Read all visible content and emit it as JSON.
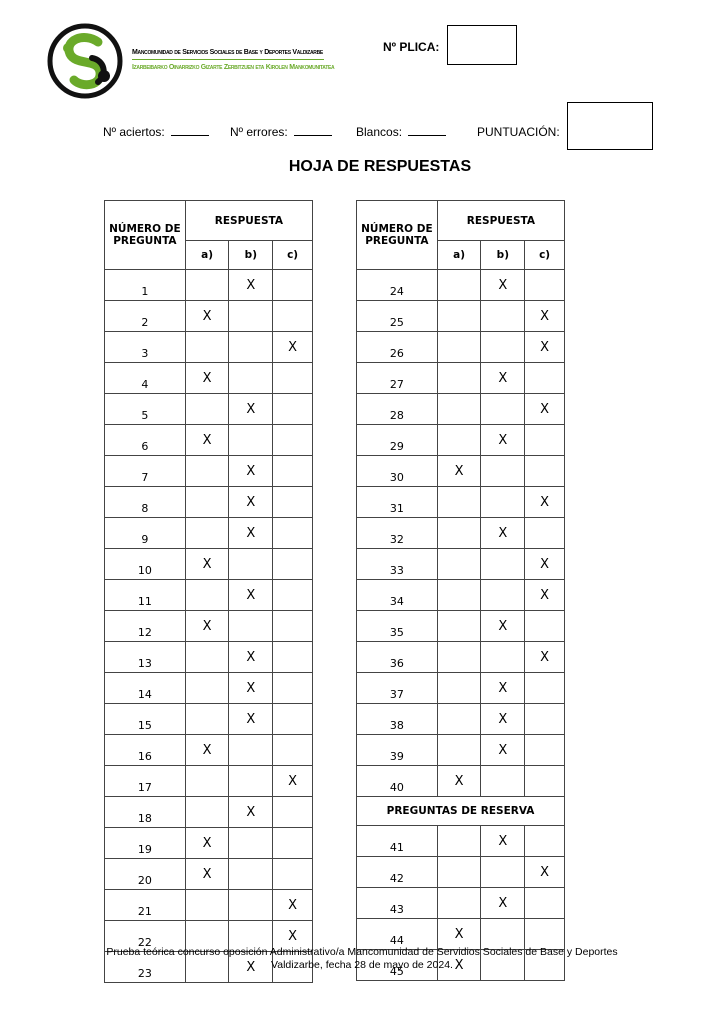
{
  "header": {
    "logo_line1": "Mancomunidad de Servicios Sociales de Base y Deportes Valdizarbe",
    "logo_line2": "Izarbeibarko Oinarrizko Gizarte Zerbitzuen eta Kirolen Mankomunitatea",
    "plica_label": "Nº PLICA:",
    "aciertos_label": "Nº aciertos:",
    "errores_label": "Nº errores:",
    "blancos_label": "Blancos:",
    "puntuacion_label": "PUNTUACIÓN:",
    "title": "HOJA DE RESPUESTAS"
  },
  "colors": {
    "logo_green": "#6aaa2a"
  },
  "table": {
    "col_number": "NÚMERO DE PREGUNTA",
    "col_answer": "RESPUESTA",
    "options": [
      "a)",
      "b)",
      "c)"
    ],
    "mark": "X",
    "reserve_label": "PREGUNTAS DE RESERVA",
    "left": [
      [
        "1",
        "b"
      ],
      [
        "2",
        "a"
      ],
      [
        "3",
        "c"
      ],
      [
        "4",
        "a"
      ],
      [
        "5",
        "b"
      ],
      [
        "6",
        "a"
      ],
      [
        "7",
        "b"
      ],
      [
        "8",
        "b"
      ],
      [
        "9",
        "b"
      ],
      [
        "10",
        "a"
      ],
      [
        "11",
        "b"
      ],
      [
        "12",
        "a"
      ],
      [
        "13",
        "b"
      ],
      [
        "14",
        "b"
      ],
      [
        "15",
        "b"
      ],
      [
        "16",
        "a"
      ],
      [
        "17",
        "c"
      ],
      [
        "18",
        "b"
      ],
      [
        "19",
        "a"
      ],
      [
        "20",
        "a"
      ],
      [
        "21",
        "c"
      ],
      [
        "22",
        "c"
      ],
      [
        "23",
        "b"
      ]
    ],
    "right": [
      [
        "24",
        "b"
      ],
      [
        "25",
        "c"
      ],
      [
        "26",
        "c"
      ],
      [
        "27",
        "b"
      ],
      [
        "28",
        "c"
      ],
      [
        "29",
        "b"
      ],
      [
        "30",
        "a"
      ],
      [
        "31",
        "c"
      ],
      [
        "32",
        "b"
      ],
      [
        "33",
        "c"
      ],
      [
        "34",
        "c"
      ],
      [
        "35",
        "b"
      ],
      [
        "36",
        "c"
      ],
      [
        "37",
        "b"
      ],
      [
        "38",
        "b"
      ],
      [
        "39",
        "b"
      ],
      [
        "40",
        "a"
      ]
    ],
    "reserve": [
      [
        "41",
        "b"
      ],
      [
        "42",
        "c"
      ],
      [
        "43",
        "b"
      ],
      [
        "44",
        "a"
      ],
      [
        "45",
        "a"
      ]
    ]
  },
  "footer": {
    "line1": "Prueba teórica concurso oposición Administrativo/a Mancomunidad de Servidios Sociales de Base y Deportes",
    "line2": "Valdizarbe, fecha 28 de mayo de 2024."
  }
}
